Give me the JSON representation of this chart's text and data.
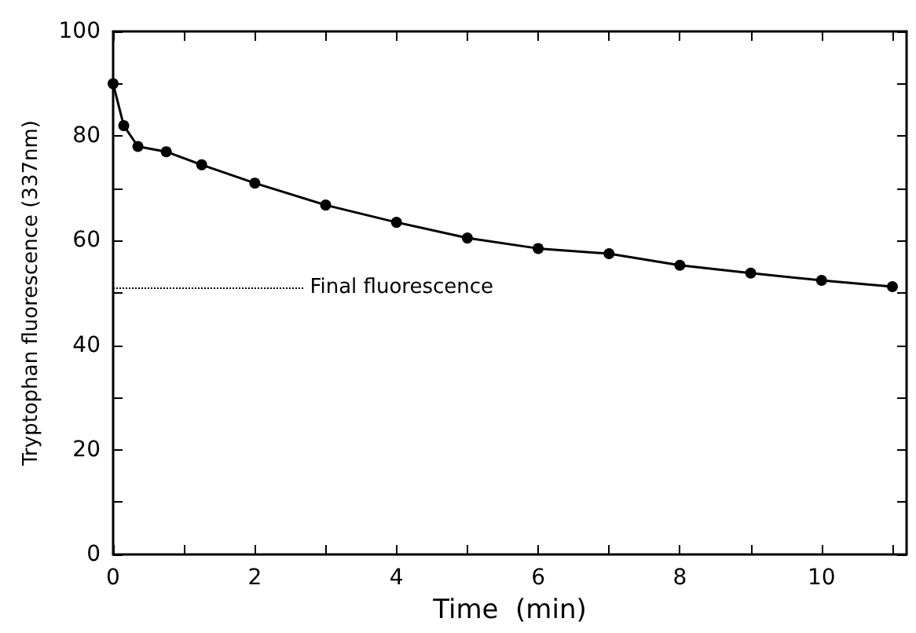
{
  "chart_data": {
    "type": "line",
    "xlabel": "Time  (min)",
    "ylabel": "Tryptophan fluorescence (337nm)",
    "x": [
      0,
      0.15,
      0.35,
      0.75,
      1.25,
      2,
      3,
      4,
      5,
      6,
      7,
      8,
      9,
      10,
      11
    ],
    "series": [
      {
        "color": "#000000",
        "values": [
          90,
          82,
          78,
          77,
          74.5,
          71,
          66.8,
          63.5,
          60.5,
          58.5,
          57.5,
          55.3,
          53.8,
          52.4,
          51.2
        ]
      }
    ],
    "xlim": [
      0,
      11.2
    ],
    "xticks": [
      0,
      {
        "value": 1,
        "label": null
      },
      2,
      {
        "value": 3,
        "label": null
      },
      4,
      {
        "value": 5,
        "label": null
      },
      6,
      {
        "value": 7,
        "label": null
      },
      8,
      {
        "value": 9,
        "label": null
      },
      10,
      {
        "value": 11,
        "label": null
      }
    ],
    "ylim": [
      0,
      100
    ],
    "yticks": [
      0,
      {
        "value": 10,
        "label": null
      },
      20,
      {
        "value": 30,
        "label": null
      },
      40,
      {
        "value": 50,
        "label": null
      },
      60,
      {
        "value": 70,
        "label": null
      },
      80,
      {
        "value": 90,
        "label": null
      },
      100
    ],
    "ref_lines": [
      {
        "axis": "y",
        "value": 51,
        "label": "Final fluorescence",
        "line_style": "dotted",
        "color": "#000000"
      }
    ],
    "marker": "circle",
    "line_style": "solid",
    "grid": false
  }
}
